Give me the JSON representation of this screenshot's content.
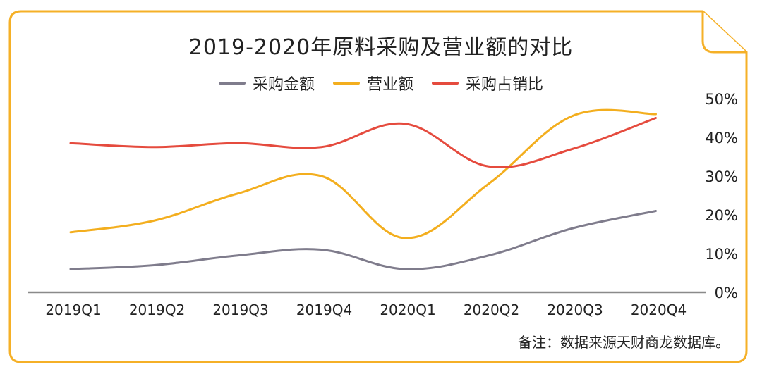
{
  "title": "2019-2020年原料采购及营业额的对比",
  "note": "备注：数据来源天财商龙数据库。",
  "colors": {
    "border": "#F5B027",
    "axis": "#8A8A8A",
    "text": "#222222"
  },
  "chart_data": {
    "type": "line",
    "categories": [
      "2019Q1",
      "2019Q2",
      "2019Q3",
      "2019Q4",
      "2020Q1",
      "2020Q2",
      "2020Q3",
      "2020Q4"
    ],
    "y_axis": {
      "position": "right",
      "ylim": [
        0,
        50
      ],
      "ticks": [
        "0%",
        "10%",
        "20%",
        "30%",
        "40%",
        "50%"
      ]
    },
    "grid": false,
    "legend": "top-center",
    "series": [
      {
        "name": "采购金额",
        "color": "#7F7C8C",
        "values": [
          6,
          7,
          9.5,
          11,
          6,
          9.5,
          16.5,
          21
        ]
      },
      {
        "name": "营业额",
        "color": "#F3AE1E",
        "values": [
          15.5,
          18.5,
          25.5,
          30,
          14,
          28,
          45.5,
          46
        ]
      },
      {
        "name": "采购占销比",
        "color": "#E54B3E",
        "values": [
          38.5,
          37.5,
          38.5,
          37.5,
          43.5,
          32.5,
          37,
          45
        ]
      }
    ]
  }
}
